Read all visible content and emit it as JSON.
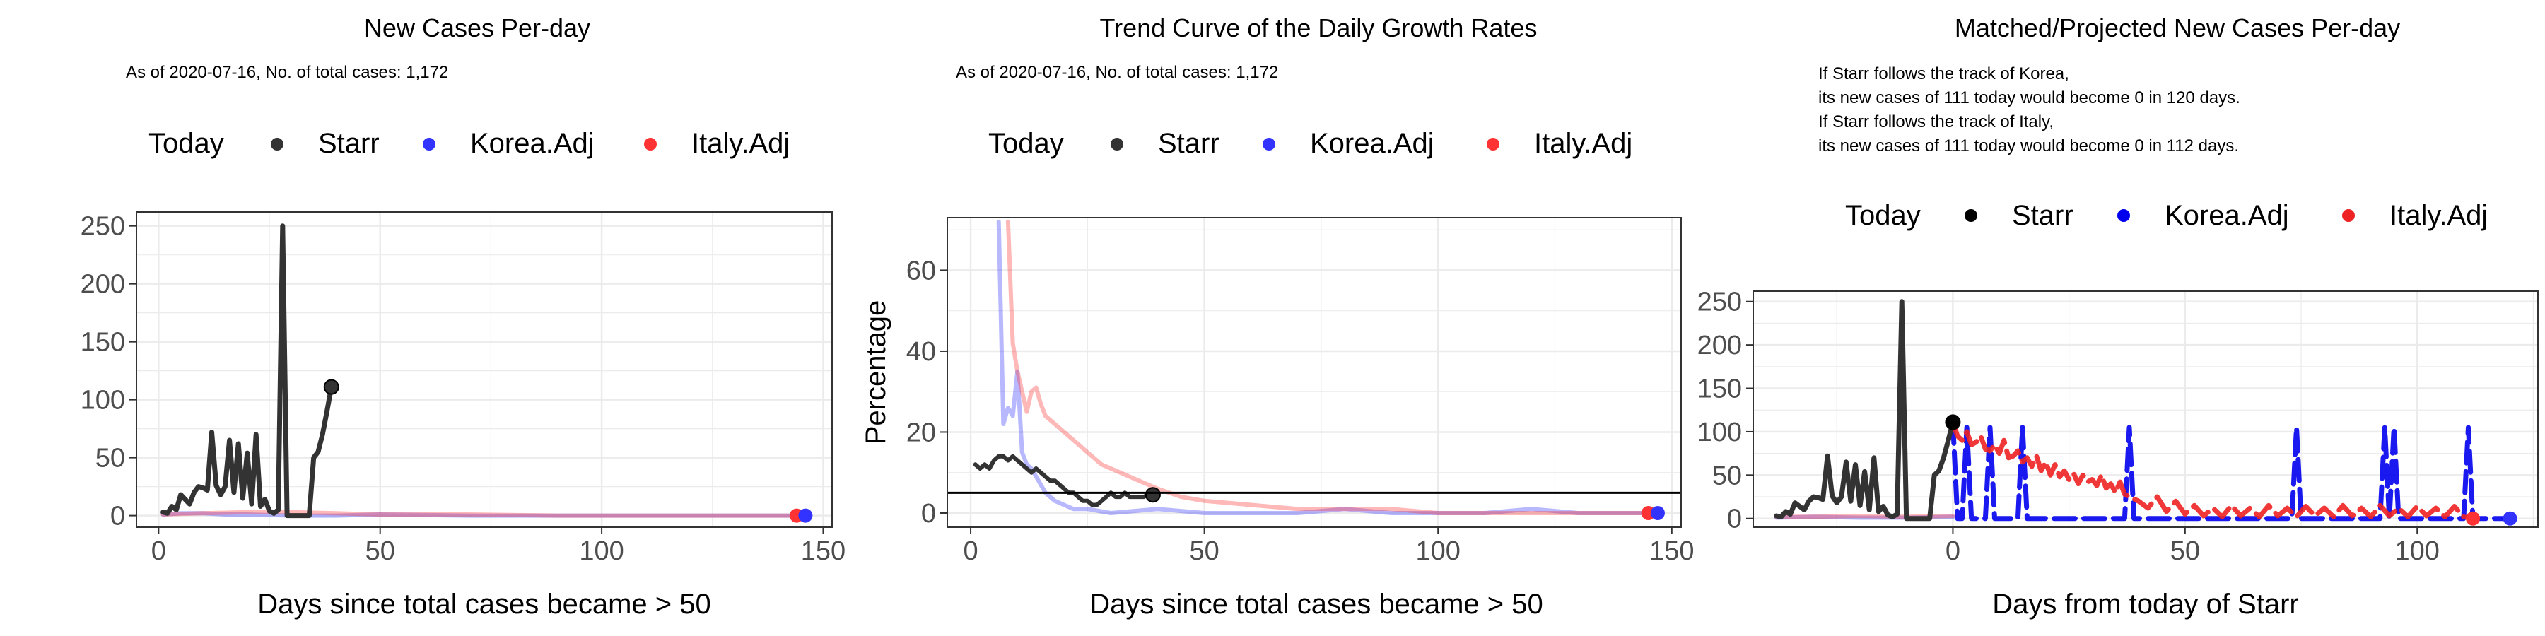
{
  "colors": {
    "starr": "#333333",
    "starr_projected": "#000000",
    "korea": "#3333ff",
    "korea_projected": "#0000ee",
    "italy": "#ff3333",
    "italy_projected": "#ee2222",
    "grid": "#ebebeb",
    "axis_text": "#4d4d4d"
  },
  "legend_labels": {
    "today": "Today",
    "starr": "Starr",
    "korea": "Korea.Adj",
    "italy": "Italy.Adj"
  },
  "chart_data": [
    {
      "type": "line",
      "title": "New Cases Per-day",
      "subtitle": "As of 2020-07-16, No. of total cases: 1,172",
      "xlabel": "Days since total cases became > 50",
      "ylabel": "",
      "xlim": [
        -5,
        152
      ],
      "ylim": [
        -10,
        262
      ],
      "xticks": [
        0,
        50,
        100,
        150
      ],
      "yticks": [
        0,
        50,
        100,
        150,
        200,
        250
      ],
      "grid": true,
      "legend_position": "top",
      "today_marker": {
        "x": 39,
        "y": 111
      },
      "end_markers": [
        {
          "series": "Italy.Adj",
          "x": 144,
          "y": 0
        },
        {
          "series": "Korea.Adj",
          "x": 146,
          "y": 0
        }
      ],
      "series": [
        {
          "name": "Starr",
          "x": [
            1,
            2,
            3,
            4,
            5,
            6,
            7,
            8,
            9,
            10,
            11,
            12,
            13,
            14,
            15,
            16,
            17,
            18,
            19,
            20,
            21,
            22,
            23,
            24,
            25,
            26,
            27,
            28,
            29,
            30,
            31,
            32,
            33,
            34,
            35,
            36,
            37,
            38,
            39
          ],
          "y": [
            3,
            2,
            8,
            5,
            18,
            14,
            10,
            20,
            25,
            24,
            22,
            72,
            26,
            18,
            25,
            65,
            20,
            62,
            15,
            54,
            10,
            70,
            8,
            14,
            4,
            2,
            5,
            250,
            0,
            0,
            0,
            0,
            0,
            0,
            50,
            55,
            70,
            90,
            111
          ]
        },
        {
          "name": "Korea.Adj",
          "x": [
            1,
            5,
            10,
            15,
            20,
            30,
            40,
            50,
            70,
            90,
            110,
            130,
            146
          ],
          "y": [
            1,
            2,
            2,
            1,
            1,
            0,
            0,
            1,
            0,
            0,
            0,
            0,
            0
          ]
        },
        {
          "name": "Italy.Adj",
          "x": [
            1,
            10,
            20,
            30,
            40,
            50,
            70,
            90,
            110,
            130,
            144
          ],
          "y": [
            1,
            2,
            3,
            3,
            2,
            1,
            1,
            0,
            0,
            0,
            0
          ]
        }
      ]
    },
    {
      "type": "line",
      "title": "Trend Curve of the Daily Growth Rates",
      "subtitle": "As of 2020-07-16, No. of total cases: 1,172",
      "xlabel": "Days since total cases became > 50",
      "ylabel": "Percentage",
      "xlim": [
        -5,
        152
      ],
      "ylim": [
        -3.5,
        73
      ],
      "xticks": [
        0,
        50,
        100,
        150
      ],
      "yticks": [
        0,
        20,
        40,
        60
      ],
      "grid": true,
      "legend_position": "top",
      "hline": 5,
      "today_marker": {
        "x": 39,
        "y": 4.5
      },
      "end_markers": [
        {
          "series": "Italy.Adj",
          "x": 145,
          "y": 0
        },
        {
          "series": "Korea.Adj",
          "x": 147,
          "y": 0
        }
      ],
      "series": [
        {
          "name": "Starr",
          "x": [
            1,
            2,
            3,
            4,
            5,
            6,
            7,
            8,
            9,
            10,
            11,
            12,
            13,
            14,
            15,
            16,
            17,
            18,
            19,
            20,
            21,
            22,
            23,
            24,
            25,
            26,
            27,
            28,
            29,
            30,
            31,
            32,
            33,
            34,
            35,
            36,
            37,
            38,
            39
          ],
          "y": [
            12,
            11,
            12,
            11,
            13,
            14,
            14,
            13,
            14,
            13,
            12,
            11,
            10,
            11,
            10,
            9,
            8,
            8,
            7,
            6,
            5,
            5,
            4,
            3,
            3,
            2,
            2,
            3,
            4,
            5,
            4,
            4,
            5,
            4,
            4,
            4,
            4,
            4.5,
            4.5
          ]
        },
        {
          "name": "Korea.Adj",
          "x": [
            6,
            7,
            8,
            9,
            10,
            11,
            12,
            13,
            14,
            16,
            18,
            20,
            22,
            25,
            30,
            40,
            50,
            60,
            70,
            80,
            90,
            100,
            110,
            120,
            130,
            140,
            147
          ],
          "y": [
            72,
            22,
            26,
            24,
            35,
            15,
            12,
            11,
            9,
            5,
            3,
            2,
            1,
            1,
            0,
            1,
            0,
            0,
            0,
            1,
            0,
            0,
            0,
            1,
            0,
            0,
            0
          ]
        },
        {
          "name": "Italy.Adj",
          "x": [
            8,
            9,
            10,
            12,
            13,
            14,
            15,
            16,
            18,
            20,
            22,
            25,
            28,
            32,
            36,
            40,
            45,
            50,
            60,
            70,
            80,
            90,
            100,
            110,
            120,
            130,
            140,
            145
          ],
          "y": [
            72,
            42,
            35,
            25,
            30,
            31,
            27,
            24,
            22,
            20,
            18,
            15,
            12,
            10,
            8,
            6,
            4,
            3,
            2,
            1,
            1,
            1,
            0,
            0,
            0,
            0,
            0,
            0
          ]
        }
      ]
    },
    {
      "type": "line",
      "title": "Matched/Projected New Cases Per-day",
      "annotation_lines": [
        "If Starr follows the track of Korea,",
        "its new cases of 111 today would become 0 in 120 days.",
        "If Starr follows the track of Italy,",
        "its new cases of 111 today would become 0 in 112 days."
      ],
      "xlabel": "Days from today of Starr",
      "ylabel": "",
      "xlim": [
        -43,
        126
      ],
      "ylim": [
        -10,
        262
      ],
      "xticks": [
        0,
        50,
        100
      ],
      "yticks": [
        0,
        50,
        100,
        150,
        200,
        250
      ],
      "grid": true,
      "legend_position": "top",
      "today_marker": {
        "x": 0,
        "y": 111
      },
      "end_markers": [
        {
          "series": "Italy.Adj",
          "x": 112,
          "y": 0
        },
        {
          "series": "Korea.Adj",
          "x": 120,
          "y": 0
        }
      ],
      "series": [
        {
          "name": "Starr",
          "x": [
            -38,
            -37,
            -36,
            -35,
            -34,
            -33,
            -32,
            -31,
            -30,
            -29,
            -28,
            -27,
            -26,
            -25,
            -24,
            -23,
            -22,
            -21,
            -20,
            -19,
            -18,
            -17,
            -16,
            -15,
            -14,
            -13,
            -12,
            -11,
            -10,
            -9,
            -8,
            -7,
            -6,
            -5,
            -4,
            -3,
            -2,
            -1,
            0
          ],
          "y": [
            3,
            2,
            8,
            5,
            18,
            14,
            10,
            20,
            25,
            24,
            22,
            72,
            26,
            18,
            25,
            65,
            20,
            62,
            15,
            54,
            10,
            70,
            8,
            14,
            4,
            2,
            5,
            250,
            0,
            0,
            0,
            0,
            0,
            0,
            50,
            55,
            70,
            90,
            111
          ]
        },
        {
          "name": "Korea.Adj (matched history)",
          "x": [
            -38,
            -30,
            -20,
            -10,
            0
          ],
          "y": [
            1,
            2,
            1,
            1,
            2
          ]
        },
        {
          "name": "Italy.Adj (matched history)",
          "x": [
            -38,
            -30,
            -20,
            -10,
            0
          ],
          "y": [
            2,
            2,
            3,
            2,
            3
          ]
        },
        {
          "name": "Korea.Adj (projected)",
          "x": [
            0,
            1,
            2,
            3,
            4,
            5,
            6,
            7,
            8,
            9,
            10,
            11,
            12,
            13,
            14,
            15,
            16,
            17,
            18,
            20,
            22,
            25,
            28,
            31,
            34,
            36,
            37,
            38,
            39,
            40,
            42,
            45,
            50,
            55,
            60,
            65,
            70,
            72,
            73,
            74,
            75,
            76,
            78,
            80,
            85,
            90,
            92,
            93,
            94,
            95,
            96,
            98,
            100,
            105,
            108,
            109,
            110,
            111,
            112,
            113,
            115,
            118,
            120
          ],
          "y": [
            111,
            0,
            0,
            105,
            0,
            0,
            0,
            0,
            105,
            0,
            0,
            0,
            0,
            0,
            0,
            105,
            0,
            0,
            0,
            0,
            0,
            0,
            0,
            0,
            0,
            0,
            0,
            105,
            0,
            0,
            0,
            0,
            0,
            0,
            0,
            0,
            0,
            0,
            0,
            105,
            0,
            0,
            0,
            0,
            0,
            0,
            0,
            105,
            0,
            105,
            0,
            0,
            0,
            0,
            0,
            0,
            0,
            105,
            0,
            0,
            0,
            0,
            0
          ]
        },
        {
          "name": "Italy.Adj (projected)",
          "x": [
            0,
            1,
            2,
            3,
            4,
            5,
            6,
            7,
            8,
            9,
            10,
            11,
            12,
            13,
            14,
            15,
            16,
            17,
            18,
            19,
            20,
            21,
            22,
            23,
            24,
            25,
            26,
            27,
            28,
            29,
            30,
            31,
            32,
            33,
            34,
            35,
            36,
            37,
            38,
            40,
            42,
            44,
            46,
            48,
            50,
            52,
            54,
            56,
            58,
            60,
            62,
            64,
            66,
            68,
            70,
            72,
            74,
            76,
            78,
            80,
            82,
            84,
            86,
            88,
            90,
            92,
            94,
            96,
            98,
            100,
            102,
            104,
            106,
            108,
            110,
            112
          ],
          "y": [
            111,
            95,
            90,
            100,
            85,
            88,
            95,
            80,
            78,
            85,
            75,
            90,
            70,
            72,
            78,
            65,
            70,
            60,
            72,
            55,
            65,
            50,
            62,
            48,
            55,
            45,
            52,
            40,
            50,
            42,
            45,
            38,
            50,
            35,
            40,
            30,
            42,
            28,
            25,
            20,
            12,
            25,
            8,
            20,
            5,
            15,
            3,
            12,
            2,
            15,
            3,
            12,
            2,
            15,
            3,
            12,
            2,
            14,
            3,
            12,
            2,
            15,
            3,
            12,
            2,
            15,
            3,
            12,
            2,
            14,
            3,
            12,
            2,
            14,
            2,
            0
          ]
        }
      ]
    }
  ]
}
